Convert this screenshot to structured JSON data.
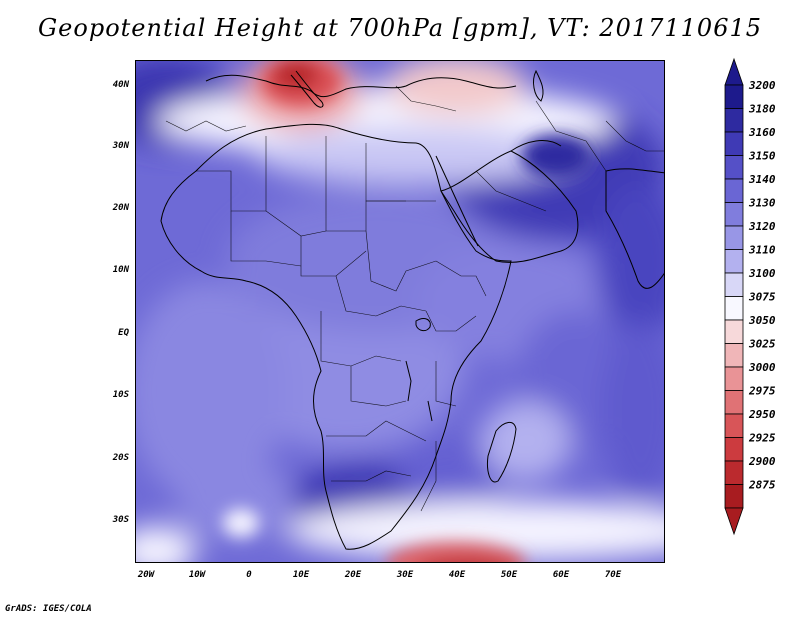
{
  "title": "Geopotential Height at 700hPa [gpm], VT: 2017110615",
  "credit": "GrADS: IGES/COLA",
  "axes": {
    "y_ticks": [
      "40N",
      "30N",
      "20N",
      "10N",
      "EQ",
      "10S",
      "20S",
      "30S"
    ],
    "x_ticks": [
      "20W",
      "10W",
      "0",
      "10E",
      "20E",
      "30E",
      "40E",
      "50E",
      "60E",
      "70E"
    ]
  },
  "colorbar": {
    "levels": [
      "3200",
      "3180",
      "3160",
      "3150",
      "3140",
      "3130",
      "3120",
      "3110",
      "3100",
      "3075",
      "3050",
      "3025",
      "3000",
      "2975",
      "2950",
      "2925",
      "2900",
      "2875"
    ],
    "colors": [
      "#1d1a8c",
      "#2e2aa0",
      "#3f3ab5",
      "#5550c7",
      "#6a66d4",
      "#807ddd",
      "#9896e6",
      "#b3b1ef",
      "#d8d7f7",
      "#f8f8ff",
      "#f7d9da",
      "#f0b6b8",
      "#e99396",
      "#e07275",
      "#d85558",
      "#cc3b3f",
      "#bb2a2e",
      "#a81c20"
    ]
  }
}
